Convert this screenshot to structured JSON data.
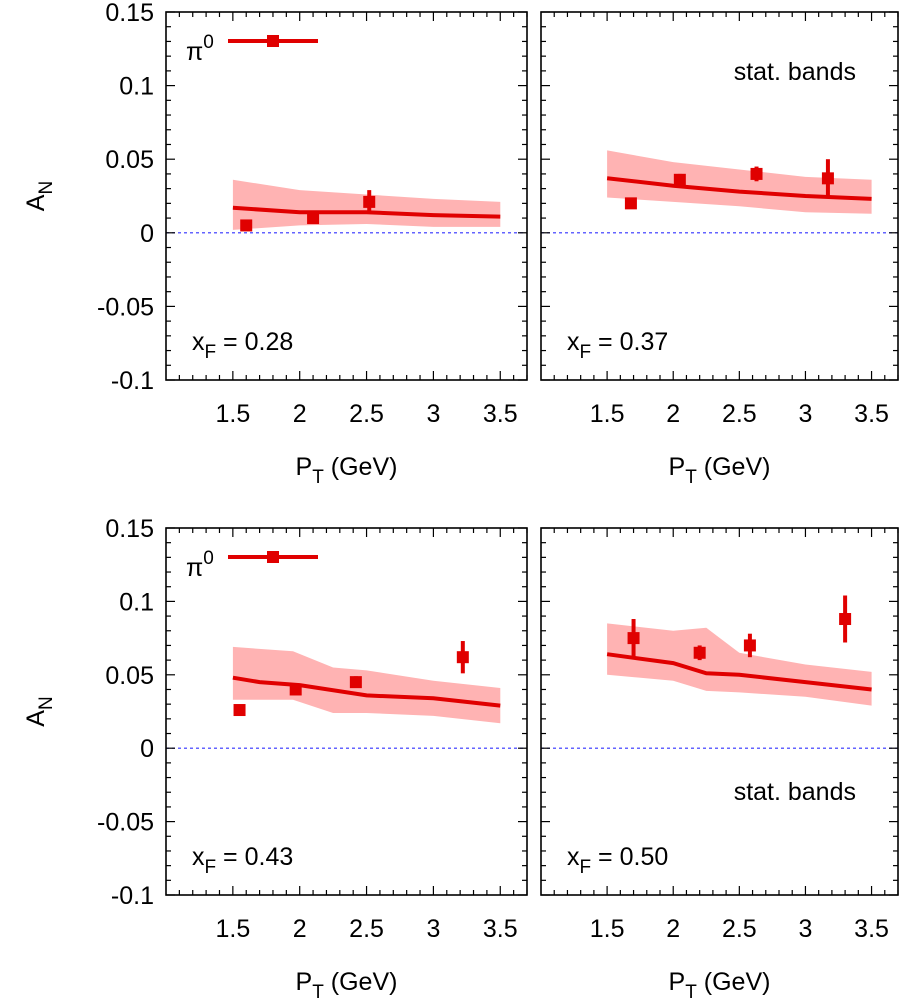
{
  "chart_data": [
    {
      "type": "line",
      "panel": "top-left",
      "xlim": [
        1.0,
        3.7
      ],
      "ylim": [
        -0.1,
        0.15
      ],
      "yticks": [
        "0.15",
        "0.1",
        "0.05",
        "0",
        "-0.05",
        "-0.1"
      ],
      "xticks": [
        "1.5",
        "2",
        "2.5",
        "3",
        "3.5"
      ],
      "xlabel": "P",
      "xlabel_sub": "T",
      "xlabel_unit": " (GeV)",
      "ylabel": "A",
      "ylabel_sub": "N",
      "annotation_main": "x",
      "annotation_sub": "F",
      "annotation_value": " = 0.28",
      "legend_label": "π",
      "legend_sup": "0",
      "stat_label": "",
      "curve": {
        "x": [
          1.5,
          2.0,
          2.5,
          3.0,
          3.5
        ],
        "y": [
          0.017,
          0.014,
          0.014,
          0.012,
          0.011
        ]
      },
      "band": {
        "x": [
          1.5,
          2.0,
          2.5,
          3.0,
          3.5
        ],
        "lower": [
          0.002,
          0.005,
          0.006,
          0.004,
          0.004
        ],
        "upper": [
          0.036,
          0.029,
          0.026,
          0.023,
          0.021
        ]
      },
      "points": [
        {
          "x": 1.6,
          "y": 0.005,
          "err": 0.003
        },
        {
          "x": 2.1,
          "y": 0.01,
          "err": 0.003
        },
        {
          "x": 2.52,
          "y": 0.021,
          "err": 0.008
        }
      ]
    },
    {
      "type": "line",
      "panel": "top-right",
      "xlim": [
        1.0,
        3.7
      ],
      "ylim": [
        -0.1,
        0.15
      ],
      "yticks": [],
      "xticks": [
        "1.5",
        "2",
        "2.5",
        "3",
        "3.5"
      ],
      "xlabel": "P",
      "xlabel_sub": "T",
      "xlabel_unit": " (GeV)",
      "ylabel": "",
      "ylabel_sub": "",
      "annotation_main": "x",
      "annotation_sub": "F",
      "annotation_value": " = 0.37",
      "legend_label": "",
      "legend_sup": "",
      "stat_label": "stat. bands",
      "curve": {
        "x": [
          1.5,
          2.0,
          2.5,
          3.0,
          3.5
        ],
        "y": [
          0.037,
          0.032,
          0.028,
          0.025,
          0.023
        ]
      },
      "band": {
        "x": [
          1.5,
          2.0,
          2.5,
          3.0,
          3.5
        ],
        "lower": [
          0.024,
          0.021,
          0.018,
          0.014,
          0.013
        ],
        "upper": [
          0.056,
          0.048,
          0.043,
          0.038,
          0.036
        ]
      },
      "points": [
        {
          "x": 1.68,
          "y": 0.02,
          "err": 0.003
        },
        {
          "x": 2.05,
          "y": 0.036,
          "err": 0.004
        },
        {
          "x": 2.63,
          "y": 0.04,
          "err": 0.005
        },
        {
          "x": 3.17,
          "y": 0.037,
          "err": 0.013
        }
      ]
    },
    {
      "type": "line",
      "panel": "bottom-left",
      "xlim": [
        1.0,
        3.7
      ],
      "ylim": [
        -0.1,
        0.15
      ],
      "yticks": [
        "0.15",
        "0.1",
        "0.05",
        "0",
        "-0.05",
        "-0.1"
      ],
      "xticks": [
        "1.5",
        "2",
        "2.5",
        "3",
        "3.5"
      ],
      "xlabel": "P",
      "xlabel_sub": "T",
      "xlabel_unit": " (GeV)",
      "ylabel": "A",
      "ylabel_sub": "N",
      "annotation_main": "x",
      "annotation_sub": "F",
      "annotation_value": " = 0.43",
      "legend_label": "π",
      "legend_sup": "0",
      "stat_label": "",
      "curve": {
        "x": [
          1.5,
          1.7,
          2.0,
          2.5,
          3.0,
          3.5
        ],
        "y": [
          0.048,
          0.045,
          0.043,
          0.036,
          0.034,
          0.029
        ]
      },
      "band": {
        "x": [
          1.5,
          1.95,
          2.25,
          2.5,
          3.0,
          3.5
        ],
        "lower": [
          0.033,
          0.033,
          0.024,
          0.024,
          0.022,
          0.017
        ],
        "upper": [
          0.069,
          0.066,
          0.055,
          0.053,
          0.046,
          0.041
        ]
      },
      "points": [
        {
          "x": 1.55,
          "y": 0.026,
          "err": 0.003
        },
        {
          "x": 1.97,
          "y": 0.04,
          "err": 0.003
        },
        {
          "x": 2.42,
          "y": 0.045,
          "err": 0.004
        },
        {
          "x": 3.22,
          "y": 0.062,
          "err": 0.011
        }
      ]
    },
    {
      "type": "line",
      "panel": "bottom-right",
      "xlim": [
        1.0,
        3.7
      ],
      "ylim": [
        -0.1,
        0.15
      ],
      "yticks": [],
      "xticks": [
        "1.5",
        "2",
        "2.5",
        "3",
        "3.5"
      ],
      "xlabel": "P",
      "xlabel_sub": "T",
      "xlabel_unit": " (GeV)",
      "ylabel": "",
      "ylabel_sub": "",
      "annotation_main": "x",
      "annotation_sub": "F",
      "annotation_value": " = 0.50",
      "legend_label": "",
      "legend_sup": "",
      "stat_label": "stat. bands",
      "curve": {
        "x": [
          1.5,
          2.0,
          2.25,
          2.5,
          3.0,
          3.5
        ],
        "y": [
          0.064,
          0.058,
          0.051,
          0.05,
          0.045,
          0.04
        ]
      },
      "band": {
        "x": [
          1.5,
          2.0,
          2.25,
          2.5,
          3.0,
          3.5
        ],
        "lower": [
          0.05,
          0.046,
          0.039,
          0.038,
          0.035,
          0.029
        ],
        "upper": [
          0.085,
          0.08,
          0.082,
          0.065,
          0.057,
          0.052
        ]
      },
      "points": [
        {
          "x": 1.7,
          "y": 0.075,
          "err": 0.013
        },
        {
          "x": 2.2,
          "y": 0.065,
          "err": 0.005
        },
        {
          "x": 2.58,
          "y": 0.07,
          "err": 0.008
        },
        {
          "x": 3.3,
          "y": 0.088,
          "err": 0.016
        }
      ]
    }
  ],
  "colors": {
    "curve": "#e00000",
    "band": "#ffb3b3",
    "zero_line": "#3030ff"
  }
}
